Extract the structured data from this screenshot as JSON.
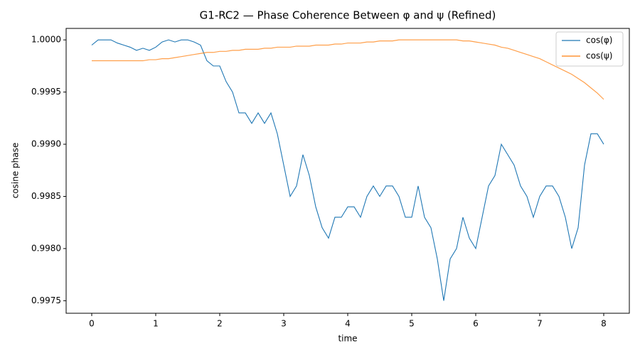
{
  "chart_data": {
    "type": "line",
    "title": "G1-RC2 — Phase Coherence Between φ and ψ (Refined)",
    "x_label": "time",
    "y_label": "cosine phase",
    "x": [
      0,
      0.1,
      0.2,
      0.3,
      0.4,
      0.5,
      0.6,
      0.7,
      0.8,
      0.9,
      1,
      1.1,
      1.2,
      1.3,
      1.4,
      1.5,
      1.6,
      1.7,
      1.8,
      1.9,
      2,
      2.1,
      2.2,
      2.3,
      2.4,
      2.5,
      2.6,
      2.7,
      2.8,
      2.9,
      3,
      3.1,
      3.2,
      3.3,
      3.4,
      3.5,
      3.6,
      3.7,
      3.8,
      3.9,
      4,
      4.1,
      4.2,
      4.3,
      4.4,
      4.5,
      4.6,
      4.7,
      4.8,
      4.9,
      5,
      5.1,
      5.2,
      5.3,
      5.4,
      5.5,
      5.6,
      5.7,
      5.8,
      5.9,
      6,
      6.1,
      6.2,
      6.3,
      6.4,
      6.5,
      6.6,
      6.7,
      6.8,
      6.9,
      7,
      7.1,
      7.2,
      7.3,
      7.4,
      7.5,
      7.6,
      7.7,
      7.8,
      7.9,
      8
    ],
    "series": [
      {
        "name": "cos(φ)",
        "color": "#1f77b4",
        "values": [
          0.99995,
          1.0,
          1.0,
          1.0,
          0.99997,
          0.99995,
          0.99993,
          0.9999,
          0.99992,
          0.9999,
          0.99993,
          0.99998,
          1.0,
          0.99998,
          1.0,
          1.0,
          0.99998,
          0.99995,
          0.9998,
          0.99975,
          0.99975,
          0.9996,
          0.9995,
          0.9993,
          0.9993,
          0.9992,
          0.9993,
          0.9992,
          0.9993,
          0.9991,
          0.9988,
          0.9985,
          0.9986,
          0.9989,
          0.9987,
          0.9984,
          0.9982,
          0.9981,
          0.9983,
          0.9983,
          0.9984,
          0.9984,
          0.9983,
          0.9985,
          0.9986,
          0.9985,
          0.9986,
          0.9986,
          0.9985,
          0.9983,
          0.9983,
          0.9986,
          0.9983,
          0.9982,
          0.9979,
          0.9975,
          0.9979,
          0.998,
          0.9983,
          0.9981,
          0.998,
          0.9983,
          0.9986,
          0.9987,
          0.999,
          0.9989,
          0.9988,
          0.9986,
          0.9985,
          0.9983,
          0.9985,
          0.9986,
          0.9986,
          0.9985,
          0.9983,
          0.998,
          0.9982,
          0.9988,
          0.9991,
          0.9991,
          0.999
        ]
      },
      {
        "name": "cos(ψ)",
        "color": "#ff7f0e",
        "values": [
          0.9998,
          0.9998,
          0.9998,
          0.9998,
          0.9998,
          0.9998,
          0.9998,
          0.9998,
          0.9998,
          0.99981,
          0.99981,
          0.99982,
          0.99982,
          0.99983,
          0.99984,
          0.99985,
          0.99986,
          0.99987,
          0.99988,
          0.99988,
          0.99989,
          0.99989,
          0.9999,
          0.9999,
          0.99991,
          0.99991,
          0.99991,
          0.99992,
          0.99992,
          0.99993,
          0.99993,
          0.99993,
          0.99994,
          0.99994,
          0.99994,
          0.99995,
          0.99995,
          0.99995,
          0.99996,
          0.99996,
          0.99997,
          0.99997,
          0.99997,
          0.99998,
          0.99998,
          0.99999,
          0.99999,
          0.99999,
          1.0,
          1.0,
          1.0,
          1.0,
          1.0,
          1.0,
          1.0,
          1.0,
          1.0,
          1.0,
          0.99999,
          0.99999,
          0.99998,
          0.99997,
          0.99996,
          0.99995,
          0.99993,
          0.99992,
          0.9999,
          0.99988,
          0.99986,
          0.99984,
          0.99982,
          0.99979,
          0.99976,
          0.99973,
          0.9997,
          0.99967,
          0.99963,
          0.99959,
          0.99954,
          0.99949,
          0.99943
        ]
      }
    ],
    "xlim": [
      -0.4,
      8.4
    ],
    "ylim": [
      0.99738,
      1.00011
    ],
    "xticks": [
      0,
      1,
      2,
      3,
      4,
      5,
      6,
      7,
      8
    ],
    "yticks": [
      0.9975,
      {
        "value": 0.998,
        "label": "0.9980"
      },
      0.9985,
      {
        "value": 0.999,
        "label": "0.9990"
      },
      0.9995,
      {
        "value": 1.0,
        "label": "1.0000"
      }
    ],
    "legend": "upper right"
  }
}
